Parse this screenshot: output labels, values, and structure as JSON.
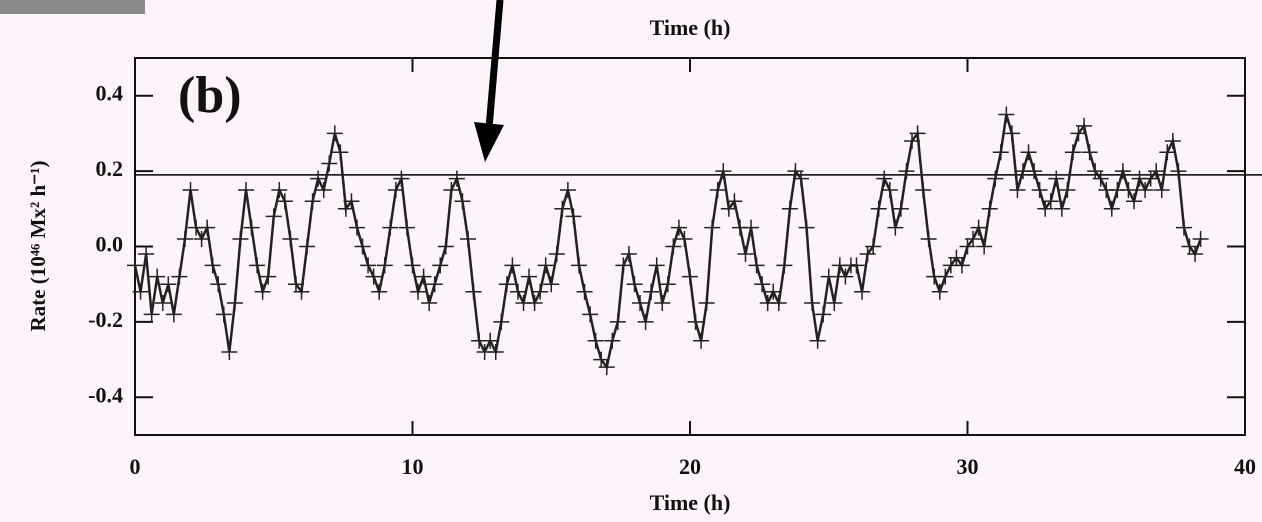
{
  "chart_data": {
    "type": "line",
    "title": "Time (h)",
    "panel_label": "(b)",
    "x_label": "Time (h)",
    "y_label": "Rate (10⁴⁶ Mx² h⁻¹)",
    "xlim": [
      0,
      40
    ],
    "xticks": [
      0,
      10,
      20,
      30,
      40
    ],
    "ylim": [
      -0.5,
      0.5
    ],
    "yticks": [
      -0.4,
      -0.2,
      {
        "value": 0,
        "label": "0.0"
      },
      0.2,
      0.4
    ],
    "hline": 0.19,
    "series": [
      {
        "color": "#222222",
        "x": [
          0,
          0.2,
          0.4,
          0.6,
          0.8,
          1,
          1.2,
          1.4,
          1.6,
          1.8,
          2,
          2.2,
          2.4,
          2.6,
          2.8,
          3,
          3.2,
          3.4,
          3.6,
          3.8,
          4,
          4.2,
          4.4,
          4.6,
          4.8,
          5,
          5.2,
          5.4,
          5.6,
          5.8,
          6,
          6.2,
          6.4,
          6.6,
          6.8,
          7,
          7.2,
          7.4,
          7.6,
          7.8,
          8,
          8.2,
          8.4,
          8.6,
          8.8,
          9,
          9.2,
          9.4,
          9.6,
          9.8,
          10,
          10.2,
          10.4,
          10.6,
          10.8,
          11,
          11.2,
          11.4,
          11.6,
          11.8,
          12,
          12.2,
          12.4,
          12.6,
          12.8,
          13,
          13.2,
          13.4,
          13.6,
          13.8,
          14,
          14.2,
          14.4,
          14.6,
          14.8,
          15,
          15.2,
          15.4,
          15.6,
          15.8,
          16,
          16.2,
          16.4,
          16.6,
          16.8,
          17,
          17.2,
          17.4,
          17.6,
          17.8,
          18,
          18.2,
          18.4,
          18.6,
          18.8,
          19,
          19.2,
          19.4,
          19.6,
          19.8,
          20,
          20.2,
          20.4,
          20.6,
          20.8,
          21,
          21.2,
          21.4,
          21.6,
          21.8,
          22,
          22.2,
          22.4,
          22.6,
          22.8,
          23,
          23.2,
          23.4,
          23.6,
          23.8,
          24,
          24.2,
          24.4,
          24.6,
          24.8,
          25,
          25.2,
          25.4,
          25.6,
          25.8,
          26,
          26.2,
          26.4,
          26.6,
          26.8,
          27,
          27.2,
          27.4,
          27.6,
          27.8,
          28,
          28.2,
          28.4,
          28.6,
          28.8,
          29,
          29.2,
          29.4,
          29.6,
          29.8,
          30,
          30.2,
          30.4,
          30.6,
          30.8,
          31,
          31.2,
          31.4,
          31.6,
          31.8,
          32,
          32.2,
          32.4,
          32.6,
          32.8,
          33,
          33.2,
          33.4,
          33.6,
          33.8,
          34,
          34.2,
          34.4,
          34.6,
          34.8,
          35,
          35.2,
          35.4,
          35.6,
          35.8,
          36,
          36.2,
          36.4,
          36.6,
          36.8,
          37,
          37.2,
          37.4,
          37.6,
          37.8,
          38,
          38.2,
          38.4
        ],
        "values": [
          -0.05,
          -0.12,
          -0.02,
          -0.18,
          -0.08,
          -0.15,
          -0.1,
          -0.18,
          -0.08,
          0.02,
          0.15,
          0.05,
          0.02,
          0.05,
          -0.05,
          -0.1,
          -0.18,
          -0.28,
          -0.15,
          0.02,
          0.15,
          0.05,
          -0.05,
          -0.12,
          -0.08,
          0.08,
          0.15,
          0.12,
          0.02,
          -0.1,
          -0.12,
          0,
          0.12,
          0.18,
          0.15,
          0.22,
          0.3,
          0.25,
          0.1,
          0.12,
          0.05,
          0,
          -0.05,
          -0.08,
          -0.12,
          -0.05,
          0.05,
          0.15,
          0.18,
          0.05,
          -0.05,
          -0.12,
          -0.08,
          -0.15,
          -0.1,
          -0.05,
          0,
          0.15,
          0.18,
          0.12,
          0.02,
          -0.12,
          -0.25,
          -0.28,
          -0.25,
          -0.28,
          -0.2,
          -0.1,
          -0.05,
          -0.12,
          -0.15,
          -0.08,
          -0.15,
          -0.12,
          -0.05,
          -0.1,
          -0.02,
          0.1,
          0.15,
          0.08,
          -0.05,
          -0.12,
          -0.18,
          -0.25,
          -0.3,
          -0.32,
          -0.25,
          -0.2,
          -0.05,
          -0.02,
          -0.1,
          -0.15,
          -0.2,
          -0.12,
          -0.05,
          -0.15,
          -0.1,
          0,
          0.05,
          0.02,
          -0.08,
          -0.2,
          -0.25,
          -0.15,
          0.05,
          0.15,
          0.2,
          0.1,
          0.12,
          0.05,
          -0.02,
          0.05,
          -0.05,
          -0.1,
          -0.15,
          -0.12,
          -0.15,
          -0.05,
          0.1,
          0.2,
          0.18,
          0.05,
          -0.15,
          -0.25,
          -0.18,
          -0.08,
          -0.15,
          -0.05,
          -0.08,
          -0.05,
          -0.05,
          -0.12,
          -0.02,
          0,
          0.1,
          0.18,
          0.15,
          0.05,
          0.1,
          0.2,
          0.28,
          0.3,
          0.15,
          0.02,
          -0.08,
          -0.12,
          -0.08,
          -0.05,
          -0.03,
          -0.05,
          0,
          0.02,
          0.05,
          0,
          0.1,
          0.18,
          0.25,
          0.35,
          0.3,
          0.15,
          0.2,
          0.25,
          0.2,
          0.15,
          0.1,
          0.12,
          0.18,
          0.1,
          0.15,
          0.25,
          0.3,
          0.32,
          0.25,
          0.2,
          0.18,
          0.15,
          0.1,
          0.15,
          0.2,
          0.15,
          0.12,
          0.18,
          0.15,
          0.18,
          0.2,
          0.15,
          0.25,
          0.28,
          0.2,
          0.05,
          0,
          -0.02,
          0.02
        ]
      }
    ]
  }
}
